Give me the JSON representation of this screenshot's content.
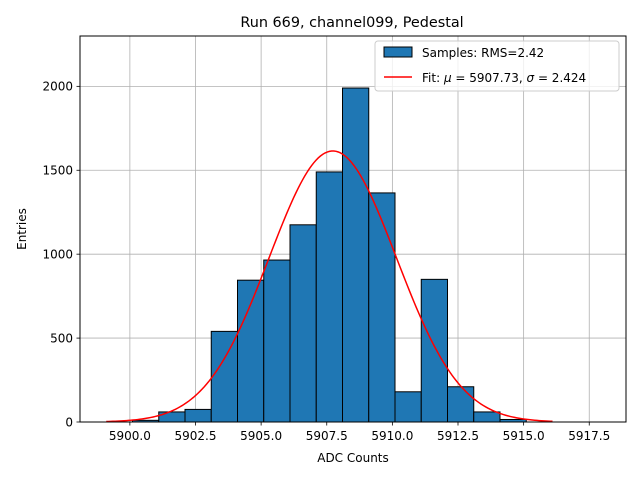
{
  "chart_data": {
    "type": "bar",
    "title": "Run 669, channel099, Pedestal",
    "xlabel": "ADC Counts",
    "ylabel": "Entries",
    "xlim": [
      5898.1,
      5918.9
    ],
    "ylim": [
      0,
      2300
    ],
    "x_ticks": [
      5900.0,
      5902.5,
      5905.0,
      5907.5,
      5910.0,
      5912.5,
      5915.0,
      5917.5
    ],
    "x_tick_labels": [
      "5900.0",
      "5902.5",
      "5905.0",
      "5907.5",
      "5910.0",
      "5912.5",
      "5915.0",
      "5917.5"
    ],
    "y_ticks": [
      0,
      500,
      1000,
      1500,
      2000
    ],
    "y_tick_labels": [
      "0",
      "500",
      "1000",
      "1500",
      "2000"
    ],
    "grid": true,
    "legend_position": "top-right",
    "bar_color": "#1f77b4",
    "fit_color": "#ff0000",
    "histogram": {
      "name": "Samples: RMS=2.42",
      "bins": [
        {
          "x0": 5899.1,
          "x1": 5900.1,
          "value": 0
        },
        {
          "x0": 5900.1,
          "x1": 5901.1,
          "value": 10
        },
        {
          "x0": 5901.1,
          "x1": 5902.1,
          "value": 60
        },
        {
          "x0": 5902.1,
          "x1": 5903.1,
          "value": 75
        },
        {
          "x0": 5903.1,
          "x1": 5904.1,
          "value": 540
        },
        {
          "x0": 5904.1,
          "x1": 5905.1,
          "value": 845
        },
        {
          "x0": 5905.1,
          "x1": 5906.1,
          "value": 965
        },
        {
          "x0": 5906.1,
          "x1": 5907.1,
          "value": 1175
        },
        {
          "x0": 5907.1,
          "x1": 5908.1,
          "value": 1490
        },
        {
          "x0": 5908.1,
          "x1": 5909.1,
          "value": 1990
        },
        {
          "x0": 5909.1,
          "x1": 5910.1,
          "value": 1365
        },
        {
          "x0": 5910.1,
          "x1": 5911.1,
          "value": 180
        },
        {
          "x0": 5911.1,
          "x1": 5912.1,
          "value": 850
        },
        {
          "x0": 5912.1,
          "x1": 5913.1,
          "value": 210
        },
        {
          "x0": 5913.1,
          "x1": 5914.1,
          "value": 60
        },
        {
          "x0": 5914.1,
          "x1": 5915.1,
          "value": 15
        },
        {
          "x0": 5915.1,
          "x1": 5916.1,
          "value": 0
        }
      ]
    },
    "fit": {
      "name_prefix": "Fit: ",
      "mu_symbol": "μ",
      "sigma_symbol": "σ",
      "mu_text": " = 5907.73, ",
      "sigma_text": " = 2.424",
      "mu": 5907.73,
      "sigma": 2.424,
      "amplitude": 1615,
      "x_range": [
        5899.1,
        5916.1
      ]
    }
  }
}
